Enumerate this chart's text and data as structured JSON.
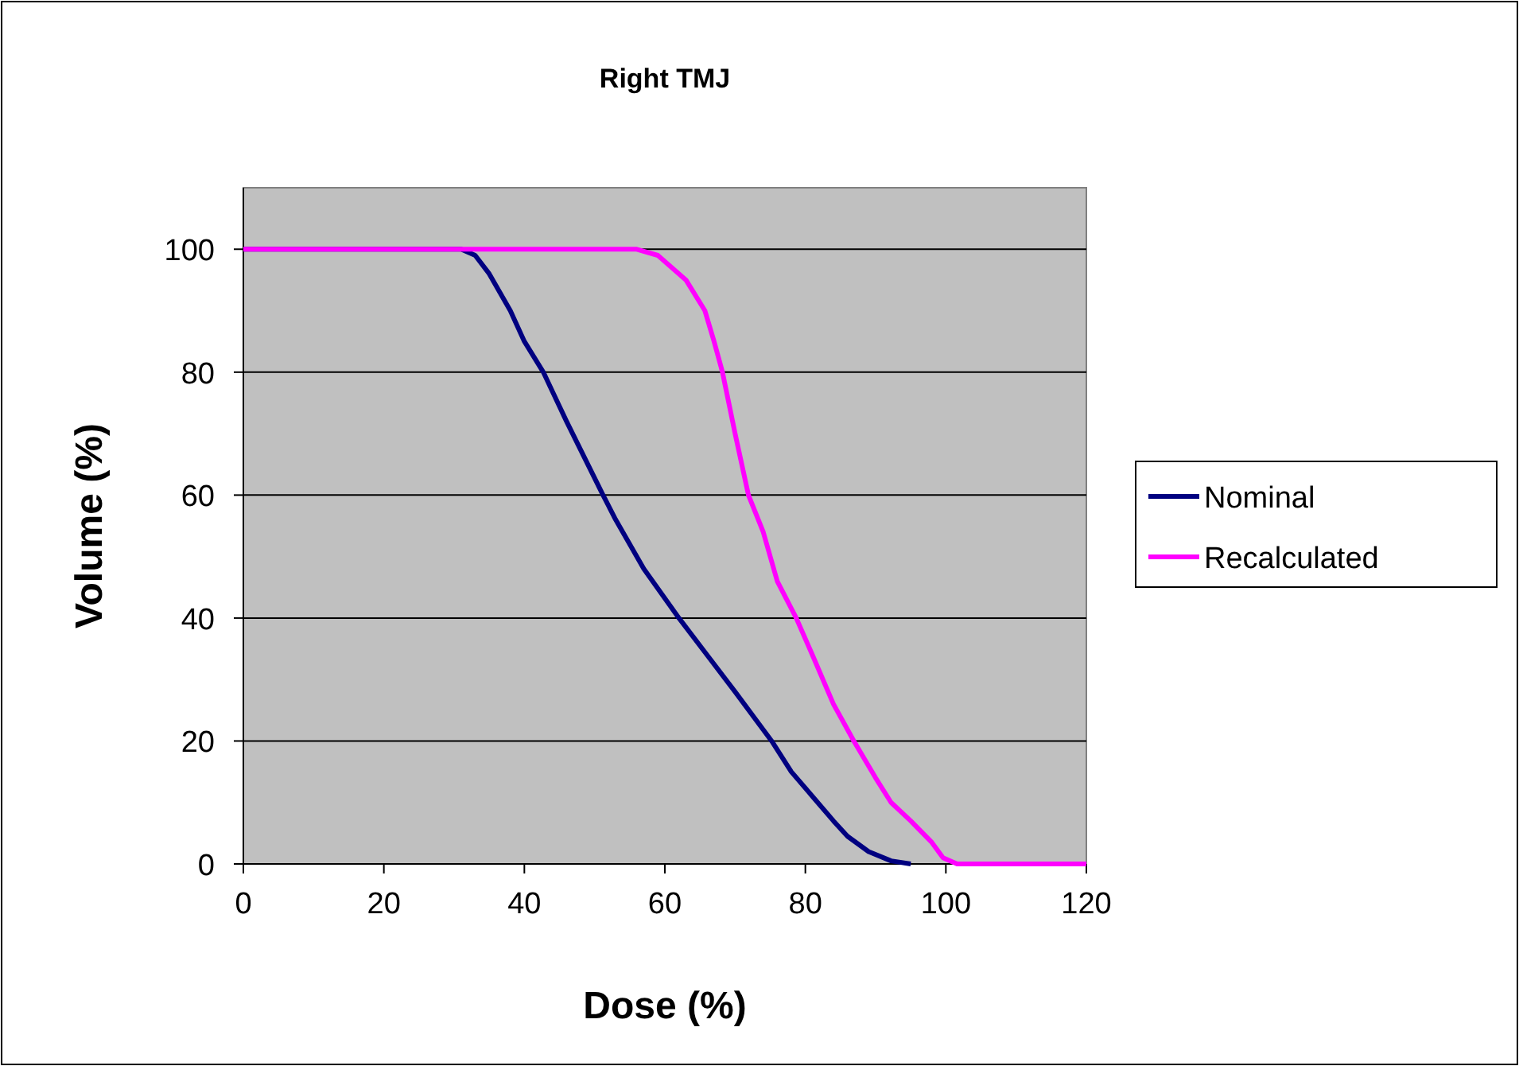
{
  "chart_data": {
    "type": "line",
    "title": "Right TMJ",
    "xlabel": "Dose (%)",
    "ylabel": "Volume (%)",
    "xlim": [
      0,
      120
    ],
    "ylim": [
      0,
      110
    ],
    "xticks": [
      0,
      20,
      40,
      60,
      80,
      100,
      120
    ],
    "yticks": [
      0,
      20,
      40,
      60,
      80,
      100
    ],
    "grid": "y",
    "legend": "right",
    "line_style": "solid",
    "series": [
      {
        "name": "Nominal",
        "color": "#000080",
        "x": [
          0,
          31,
          33,
          35,
          38,
          40,
          42.7,
          46,
          51.2,
          53,
          57,
          62,
          66,
          70,
          75.2,
          78,
          81,
          84,
          86,
          89,
          92.2,
          95
        ],
        "values": [
          100,
          100,
          99,
          96,
          90,
          85,
          80,
          72,
          60,
          56,
          48,
          40,
          34,
          28,
          20,
          15,
          11,
          7,
          4.5,
          2,
          0.5,
          0
        ]
      },
      {
        "name": "Recalculated",
        "color": "#ff00ff",
        "x": [
          0,
          56,
          59,
          61,
          63,
          65.7,
          67,
          68.2,
          70,
          71.9,
          74,
          76,
          78.7,
          81,
          84,
          86.9,
          90,
          92.2,
          95,
          98,
          99.6,
          101.6,
          120
        ],
        "values": [
          100,
          100,
          99,
          97,
          95,
          90,
          85,
          80,
          70,
          60,
          54,
          46,
          40,
          34,
          26,
          20,
          14,
          10,
          7,
          3.5,
          1,
          0,
          0
        ]
      }
    ]
  }
}
